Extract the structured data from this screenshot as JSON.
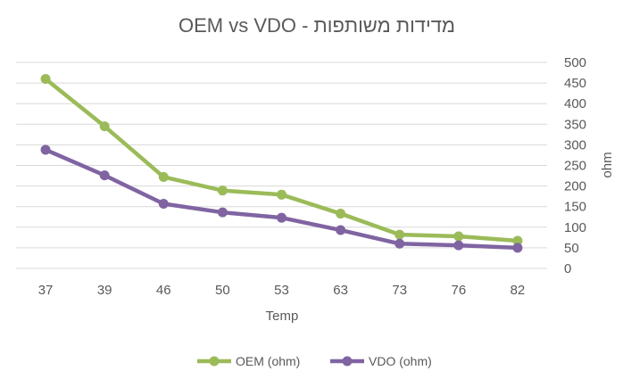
{
  "chart_data": {
    "type": "line",
    "title": "OEM vs VDO - מדידות משותפות",
    "xlabel": "Temp",
    "ylabel": "ohm",
    "categories": [
      "37",
      "39",
      "46",
      "50",
      "53",
      "63",
      "73",
      "76",
      "82"
    ],
    "ylim": [
      0,
      500
    ],
    "yticks": [
      0,
      50,
      100,
      150,
      200,
      250,
      300,
      350,
      400,
      450,
      500
    ],
    "y_axis_side": "right",
    "grid": true,
    "legend_position": "bottom",
    "series": [
      {
        "name": "OEM (ohm)",
        "color": "#9bbb59",
        "values": [
          460,
          345,
          222,
          189,
          179,
          133,
          82,
          78,
          67
        ]
      },
      {
        "name": "VDO (ohm)",
        "color": "#8064a2",
        "values": [
          288,
          226,
          157,
          136,
          123,
          93,
          60,
          56,
          50
        ]
      }
    ]
  }
}
